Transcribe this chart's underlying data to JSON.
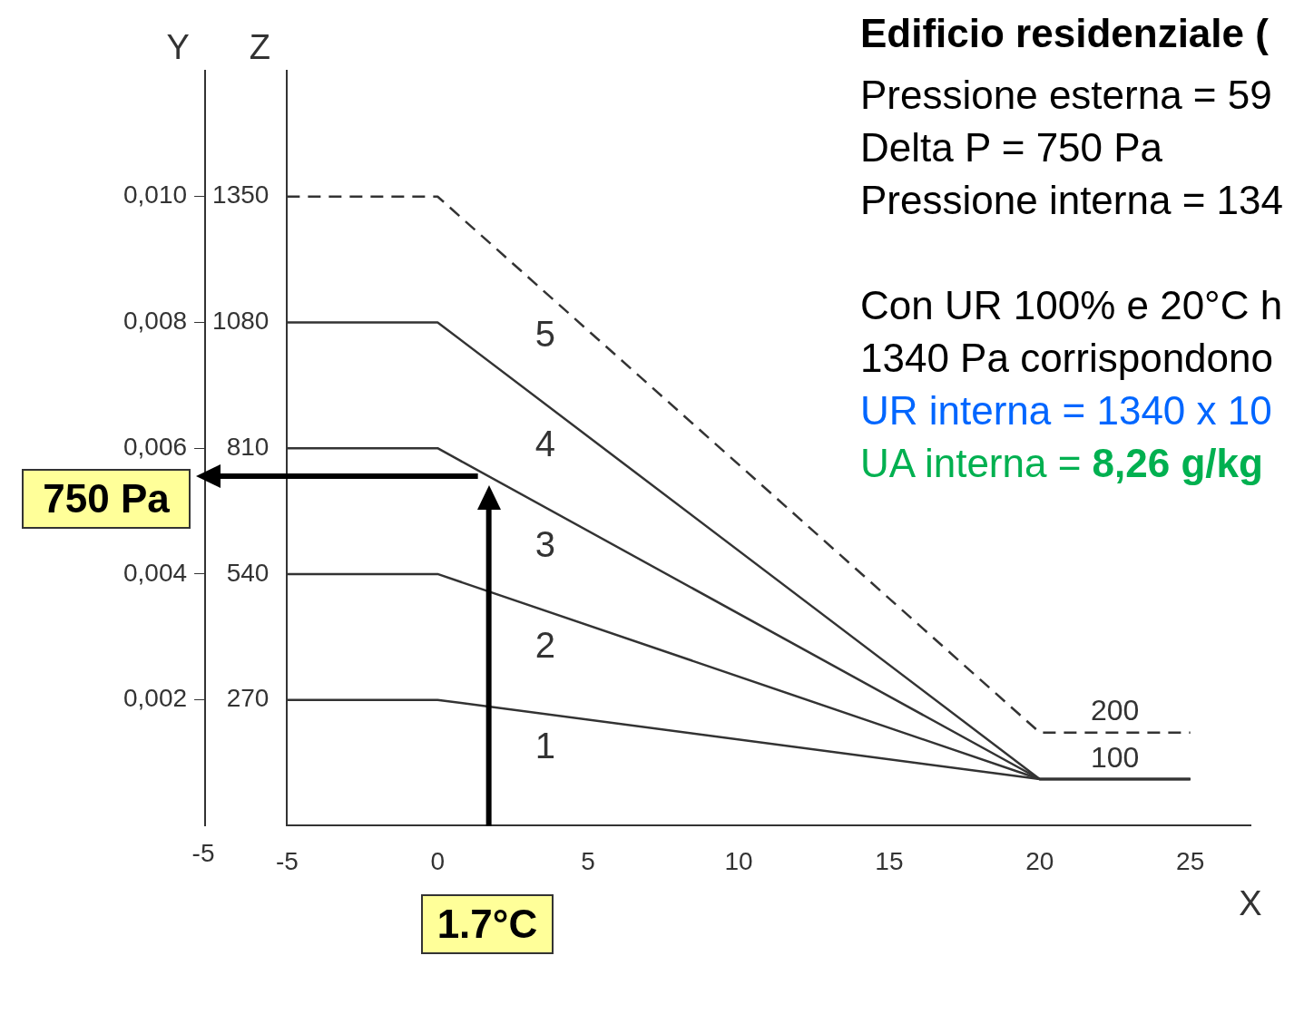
{
  "chart_data": {
    "type": "line",
    "title": "Edificio residenziale (",
    "xlabel": "X",
    "ylabel": "Z",
    "y2label": "Y",
    "x": [
      -5,
      0,
      20,
      25
    ],
    "series": [
      {
        "name": "1",
        "color": "#333333",
        "values": [
          270,
          270,
          100,
          100
        ],
        "line_style": "solid"
      },
      {
        "name": "2",
        "color": "#333333",
        "values": [
          540,
          540,
          100,
          100
        ],
        "line_style": "solid"
      },
      {
        "name": "3",
        "color": "#333333",
        "values": [
          810,
          810,
          100,
          100
        ],
        "line_style": "solid"
      },
      {
        "name": "4",
        "color": "#333333",
        "values": [
          1080,
          1080,
          100,
          100
        ],
        "line_style": "solid"
      },
      {
        "name": "5",
        "color": "#333333",
        "values": [
          1350,
          1350,
          200,
          200
        ],
        "line_style": "dashed"
      }
    ],
    "xlim": [
      -5,
      27
    ],
    "xticks": [
      -5,
      0,
      5,
      10,
      15,
      20,
      25
    ],
    "ylim": [
      0,
      1620
    ],
    "yticks": [
      270,
      540,
      810,
      1080,
      1350
    ],
    "y2lim": [
      0,
      0.012
    ],
    "y2ticks": [
      {
        "value": 0.002,
        "label": "0,002"
      },
      {
        "value": 0.004,
        "label": "0,004"
      },
      {
        "value": 0.006,
        "label": "0,006"
      },
      {
        "value": 0.008,
        "label": "0,008"
      },
      {
        "value": 0.01,
        "label": "0,010"
      }
    ],
    "ref_lines": [
      {
        "axis": "y",
        "value": 750,
        "label": "750 Pa",
        "color": "#000000"
      },
      {
        "axis": "x",
        "value": 1.7,
        "label": "1.7°C",
        "color": "#000000"
      }
    ],
    "marker": "none",
    "legend": false,
    "grid": false,
    "annotations": [
      {
        "text": "200",
        "x": 22.5,
        "y": 200
      },
      {
        "text": "100",
        "x": 22.5,
        "y": 100
      },
      "-5",
      "Pressione esterna = 59",
      "Delta P = 750 Pa",
      "Pressione interna = 134",
      "Con UR 100% e 20°C h",
      "1340 Pa corrispondono",
      "UR interna = 1340 x 10",
      "UA interna = 8,26 g/kg"
    ]
  }
}
